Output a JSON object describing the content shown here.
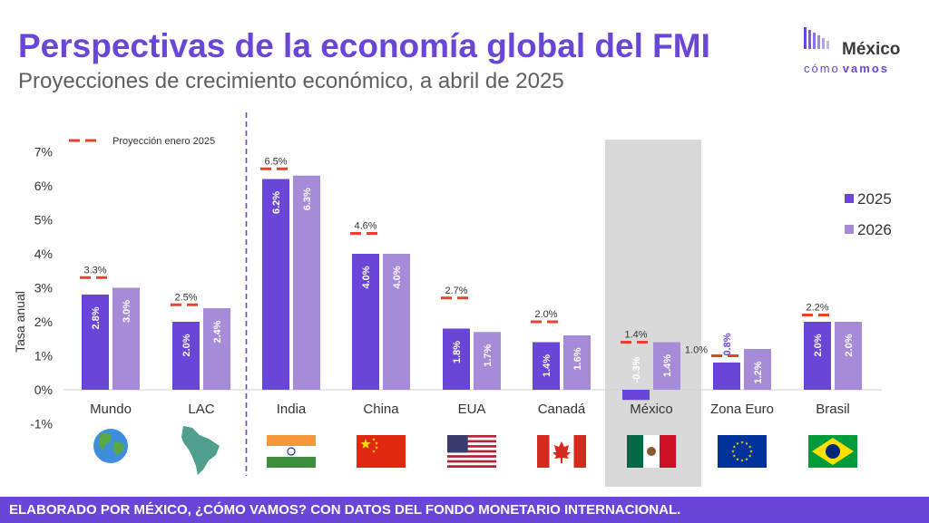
{
  "header": {
    "title": "Perspectivas de la economía global del FMI",
    "subtitle": "Proyecciones de crecimiento económico, a abril de 2025"
  },
  "logo": {
    "line1": "México",
    "line2a": "cómo",
    "line2b": "vamos"
  },
  "footer": {
    "text": "ELABORADO POR MÉXICO, ¿CÓMO VAMOS? CON DATOS DEL FONDO MONETARIO INTERNACIONAL."
  },
  "colors": {
    "title": "#6a46d8",
    "series_2025": "#6a46d8",
    "series_2026": "#a58bd8",
    "projection_marker": "#e8412c",
    "highlight_band": "#d9d9d9"
  },
  "chart_data": {
    "type": "bar",
    "ylabel": "Tasa anual",
    "ylim": [
      -1,
      7
    ],
    "yticks": [
      "-1%",
      "0%",
      "1%",
      "2%",
      "3%",
      "4%",
      "5%",
      "6%",
      "7%"
    ],
    "categories": [
      "Mundo",
      "LAC",
      "India",
      "China",
      "EUA",
      "Canadá",
      "México",
      "Zona Euro",
      "Brasil"
    ],
    "series": [
      {
        "name": "2025",
        "values": [
          2.8,
          2.0,
          6.2,
          4.0,
          1.8,
          1.4,
          -0.3,
          0.8,
          2.0
        ],
        "labels": [
          "2.8%",
          "2.0%",
          "6.2%",
          "4.0%",
          "1.8%",
          "1.4%",
          "-0.3%",
          "0.8%",
          "2.0%"
        ]
      },
      {
        "name": "2026",
        "values": [
          3.0,
          2.4,
          6.3,
          4.0,
          1.7,
          1.6,
          1.4,
          1.2,
          2.0
        ],
        "labels": [
          "3.0%",
          "2.4%",
          "6.3%",
          "4.0%",
          "1.7%",
          "1.6%",
          "1.4%",
          "1.2%",
          "2.0%"
        ]
      }
    ],
    "projection": {
      "name": "Proyección enero 2025",
      "values": [
        3.3,
        2.5,
        6.5,
        4.6,
        2.7,
        2.0,
        1.4,
        1.0,
        2.2
      ],
      "labels": [
        "3.3%",
        "2.5%",
        "6.5%",
        "4.6%",
        "2.7%",
        "2.0%",
        "1.4%",
        "1.0%",
        "2.2%"
      ]
    },
    "highlight_category": "México",
    "divider_after": "LAC",
    "legend_position": "right",
    "grid": false,
    "icons": [
      "globe-icon",
      "latin-america-map-icon",
      "india-flag-icon",
      "china-flag-icon",
      "usa-flag-icon",
      "canada-flag-icon",
      "mexico-flag-icon",
      "eu-flag-icon",
      "brazil-flag-icon"
    ]
  }
}
